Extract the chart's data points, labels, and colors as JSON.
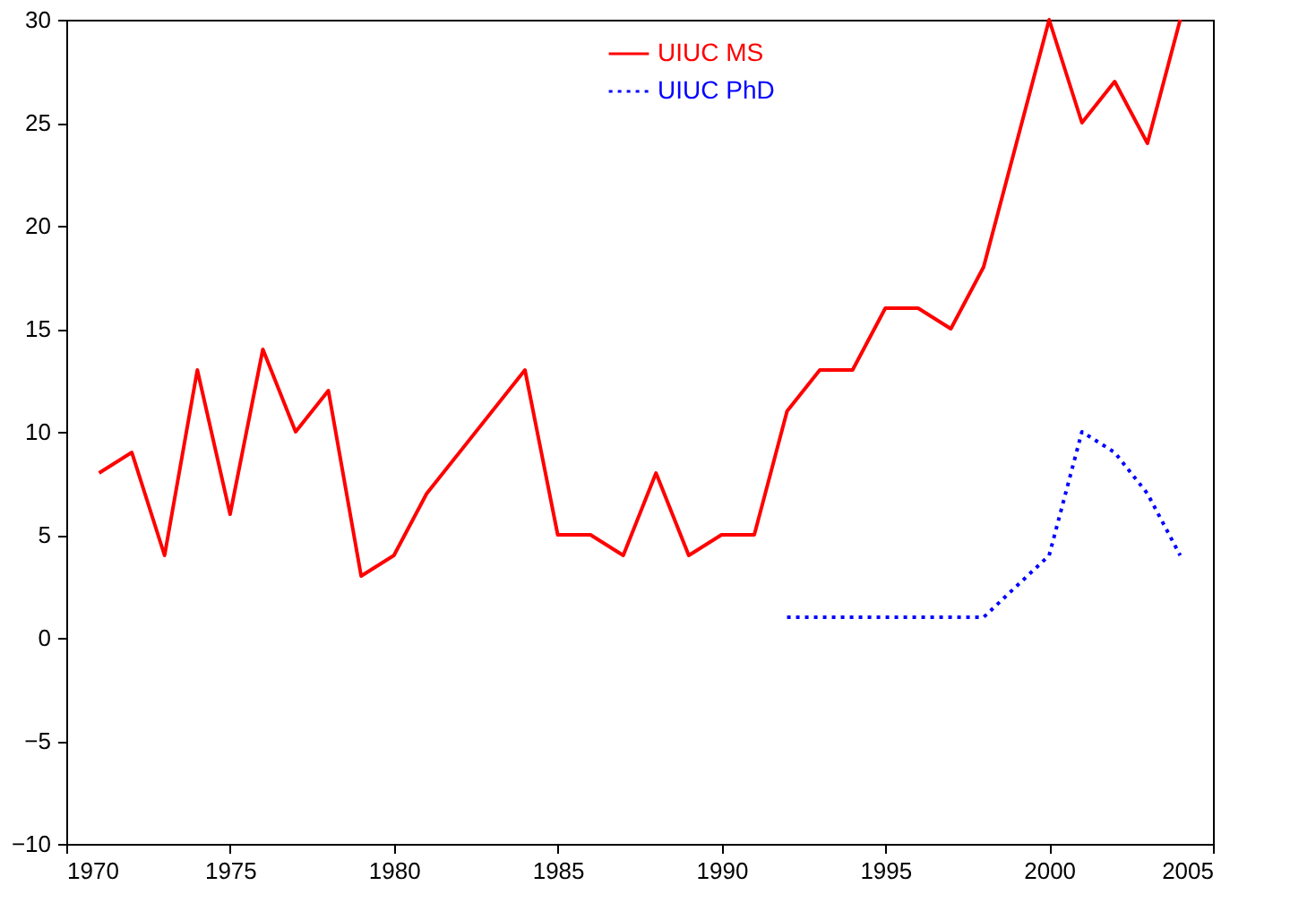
{
  "chart_data": {
    "type": "line",
    "series": [
      {
        "name": "UIUC MS",
        "color": "#ff0000",
        "line_style": "solid",
        "x": [
          1971,
          1972,
          1973,
          1974,
          1975,
          1976,
          1977,
          1978,
          1979,
          1980,
          1981,
          1984,
          1985,
          1986,
          1987,
          1988,
          1989,
          1990,
          1991,
          1992,
          1993,
          1994,
          1995,
          1996,
          1997,
          1998,
          2000,
          2001,
          2002,
          2003,
          2004
        ],
        "values": [
          8,
          9,
          4,
          13,
          6,
          14,
          10,
          12,
          3,
          4,
          7,
          13,
          5,
          5,
          4,
          8,
          4,
          5,
          5,
          11,
          13,
          13,
          16,
          16,
          15,
          18,
          30,
          25,
          27,
          24,
          30
        ]
      },
      {
        "name": "UIUC PhD",
        "color": "#0000ff",
        "line_style": "dotted",
        "x": [
          1992,
          1993,
          1994,
          1995,
          1996,
          1997,
          1998,
          2000,
          2001,
          2002,
          2003,
          2004
        ],
        "values": [
          1,
          1,
          1,
          1,
          1,
          1,
          1,
          4,
          10,
          9,
          7,
          4
        ]
      }
    ],
    "xlim": [
      1970,
      2005
    ],
    "xticks": [
      1970,
      1975,
      1980,
      1985,
      1990,
      1995,
      2000,
      2005
    ],
    "ylim": [
      -10,
      30
    ],
    "yticks": [
      -10,
      -5,
      0,
      5,
      10,
      15,
      20,
      25,
      30
    ],
    "grid": false,
    "legend": "top right",
    "marker": "none"
  }
}
